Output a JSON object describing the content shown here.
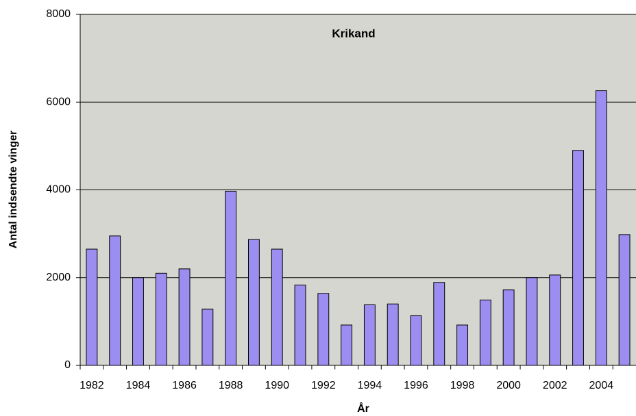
{
  "chart_data": {
    "type": "bar",
    "title": "Krikand",
    "x_label": "År",
    "y_label": "Antal indsendte vinger",
    "categories": [
      "1982",
      null,
      "1984",
      null,
      "1986",
      null,
      "1988",
      null,
      "1990",
      null,
      "1992",
      null,
      "1994",
      null,
      "1996",
      null,
      "1998",
      null,
      "2000",
      null,
      "2002",
      null,
      "2004",
      null
    ],
    "values": [
      2650,
      2950,
      2000,
      2100,
      2200,
      1280,
      3970,
      2870,
      2650,
      1830,
      1640,
      920,
      1380,
      1400,
      1130,
      1890,
      920,
      1490,
      1720,
      2000,
      2060,
      4900,
      6260,
      2980
    ],
    "color": "#9b8ef0",
    "ylim": [
      0,
      8000
    ],
    "yticks": [
      0,
      2000,
      4000,
      6000,
      8000
    ],
    "grid": true
  }
}
